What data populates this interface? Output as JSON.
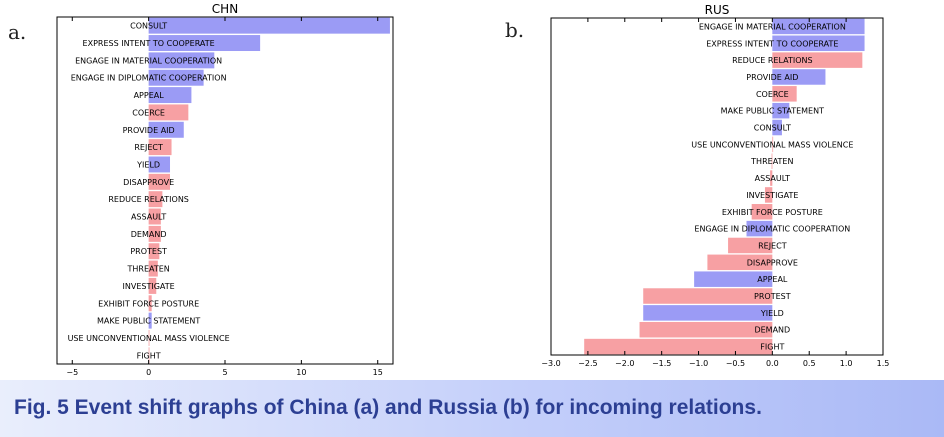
{
  "panels": [
    {
      "letter": "a."
    },
    {
      "letter": "b."
    }
  ],
  "caption": "Fig. 5 Event shift graphs of China (a) and Russia (b) for incoming relations.",
  "colors": {
    "positive": "#9b9bf5",
    "negative": "#f7a0a3"
  },
  "chart_data": [
    {
      "type": "bar",
      "orientation": "horizontal",
      "title": "CHN",
      "xlabel": "",
      "ylabel": "",
      "xlim": [
        -6,
        16
      ],
      "xticks": [
        -5,
        0,
        5,
        10,
        15
      ],
      "categories": [
        "CONSULT",
        "EXPRESS INTENT TO COOPERATE",
        "ENGAGE IN MATERIAL COOPERATION",
        "ENGAGE IN DIPLOMATIC COOPERATION",
        "APPEAL",
        "COERCE",
        "PROVIDE AID",
        "REJECT",
        "YIELD",
        "DISAPPROVE",
        "REDUCE RELATIONS",
        "ASSAULT",
        "DEMAND",
        "PROTEST",
        "THREATEN",
        "INVESTIGATE",
        "EXHIBIT FORCE POSTURE",
        "MAKE PUBLIC STATEMENT",
        "USE UNCONVENTIONAL MASS VIOLENCE",
        "FIGHT"
      ],
      "values": [
        15.8,
        7.3,
        4.3,
        3.6,
        2.8,
        2.6,
        2.3,
        1.5,
        1.4,
        1.4,
        0.9,
        0.8,
        0.8,
        0.7,
        0.6,
        0.5,
        0.2,
        0.2,
        0.05,
        0.05
      ],
      "colors": [
        "positive",
        "positive",
        "positive",
        "positive",
        "positive",
        "negative",
        "positive",
        "negative",
        "positive",
        "negative",
        "negative",
        "negative",
        "negative",
        "negative",
        "negative",
        "negative",
        "negative",
        "positive",
        "negative",
        "negative"
      ]
    },
    {
      "type": "bar",
      "orientation": "horizontal",
      "title": "RUS",
      "xlabel": "",
      "ylabel": "",
      "xlim": [
        -3.0,
        1.5
      ],
      "xticks": [
        -3.0,
        -2.5,
        -2.0,
        -1.5,
        -1.0,
        -0.5,
        0.0,
        0.5,
        1.0,
        1.5
      ],
      "categories": [
        "ENGAGE IN MATERIAL COOPERATION",
        "EXPRESS INTENT TO COOPERATE",
        "REDUCE RELATIONS",
        "PROVIDE AID",
        "COERCE",
        "MAKE PUBLIC STATEMENT",
        "CONSULT",
        "USE UNCONVENTIONAL MASS VIOLENCE",
        "THREATEN",
        "ASSAULT",
        "INVESTIGATE",
        "EXHIBIT FORCE POSTURE",
        "ENGAGE IN DIPLOMATIC COOPERATION",
        "REJECT",
        "DISAPPROVE",
        "APPEAL",
        "PROTEST",
        "YIELD",
        "DEMAND",
        "FIGHT"
      ],
      "values": [
        1.25,
        1.25,
        1.22,
        0.72,
        0.33,
        0.23,
        0.13,
        0.01,
        -0.01,
        -0.03,
        -0.1,
        -0.28,
        -0.35,
        -0.6,
        -0.88,
        -1.06,
        -1.75,
        -1.75,
        -1.8,
        -2.55
      ],
      "colors": [
        "positive",
        "positive",
        "negative",
        "positive",
        "negative",
        "positive",
        "positive",
        "negative",
        "negative",
        "negative",
        "negative",
        "negative",
        "positive",
        "negative",
        "negative",
        "positive",
        "negative",
        "positive",
        "negative",
        "negative"
      ]
    }
  ]
}
